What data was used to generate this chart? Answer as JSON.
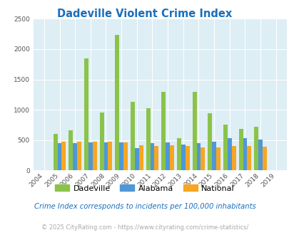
{
  "title": "Dadeville Violent Crime Index",
  "title_color": "#1a6fbd",
  "years": [
    2004,
    2005,
    2006,
    2007,
    2008,
    2009,
    2010,
    2011,
    2012,
    2013,
    2014,
    2015,
    2016,
    2017,
    2018,
    2019
  ],
  "dadeville": [
    0,
    600,
    660,
    1850,
    950,
    2230,
    1130,
    1030,
    1300,
    535,
    1290,
    940,
    755,
    680,
    720,
    0
  ],
  "alabama": [
    0,
    455,
    445,
    460,
    460,
    460,
    370,
    445,
    460,
    430,
    450,
    470,
    535,
    530,
    510,
    0
  ],
  "national": [
    0,
    475,
    475,
    475,
    475,
    460,
    410,
    405,
    415,
    400,
    375,
    380,
    400,
    400,
    395,
    0
  ],
  "dadeville_color": "#8bc34a",
  "alabama_color": "#4f97d7",
  "national_color": "#f5a623",
  "bg_color": "#ddeef5",
  "ylim": [
    0,
    2500
  ],
  "yticks": [
    0,
    500,
    1000,
    1500,
    2000,
    2500
  ],
  "subtitle": "Crime Index corresponds to incidents per 100,000 inhabitants",
  "footer": "© 2025 CityRating.com - https://www.cityrating.com/crime-statistics/",
  "legend_labels": [
    "Dadeville",
    "Alabama",
    "National"
  ],
  "subtitle_color": "#1a6fbd",
  "footer_color": "#aaaaaa"
}
